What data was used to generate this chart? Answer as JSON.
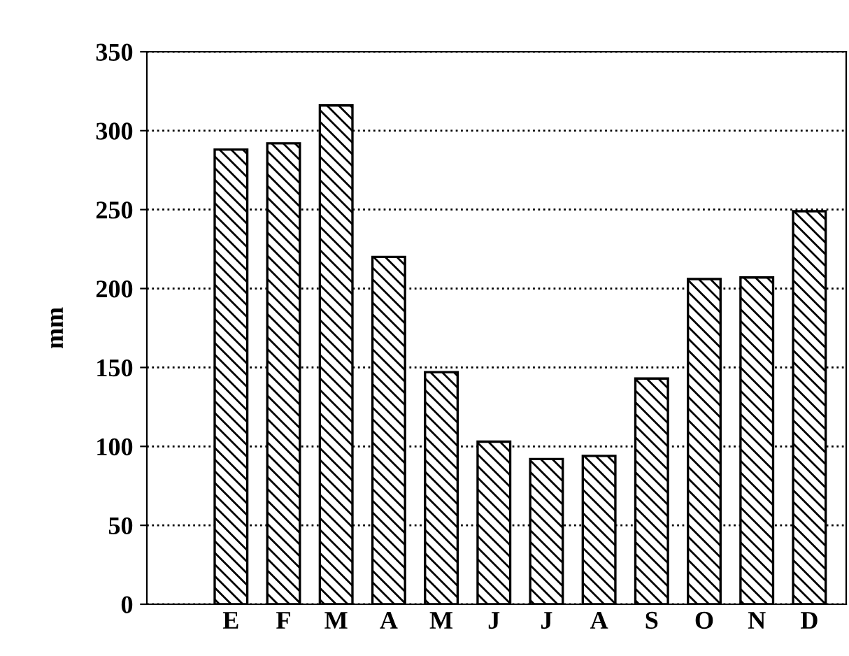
{
  "chart_data": {
    "type": "bar",
    "ylabel": "mm",
    "categories": [
      "E",
      "F",
      "M",
      "A",
      "M",
      "J",
      "J",
      "A",
      "S",
      "O",
      "N",
      "D"
    ],
    "values": [
      288,
      292,
      316,
      220,
      147,
      103,
      92,
      94,
      143,
      206,
      207,
      249
    ],
    "color": "#000000",
    "ylim": [
      0,
      350
    ],
    "yticks": [
      0,
      50,
      100,
      150,
      200,
      250,
      300,
      350
    ],
    "grid": "y"
  }
}
